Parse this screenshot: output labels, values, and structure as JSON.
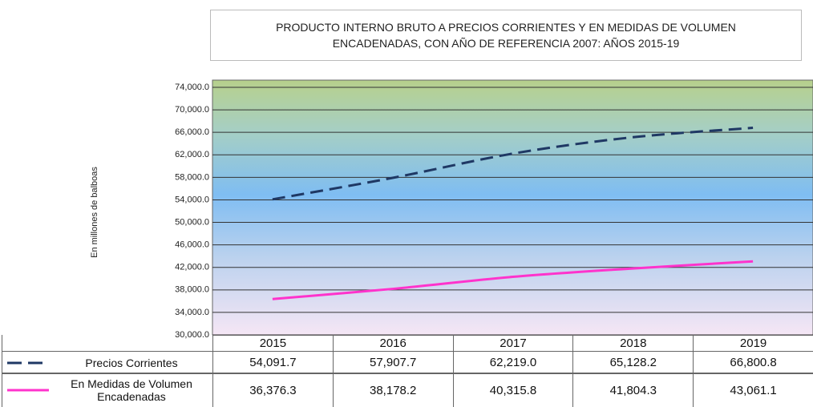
{
  "chart_data": {
    "type": "line",
    "title": "PRODUCTO INTERNO BRUTO A PRECIOS CORRIENTES Y EN MEDIDAS DE VOLUMEN ENCADENADAS, CON AÑO DE REFERENCIA 2007: AÑOS 2015-19",
    "y_label": "En millones de balboas",
    "categories": [
      "2015",
      "2016",
      "2017",
      "2018",
      "2019"
    ],
    "series": [
      {
        "name": "Precios Corrientes",
        "color": "#1f3864",
        "dash": true,
        "values": [
          54091.7,
          57907.7,
          62219.0,
          65128.2,
          66800.8
        ],
        "value_labels": [
          "54,091.7",
          "57,907.7",
          "62,219.0",
          "65,128.2",
          "66,800.8"
        ]
      },
      {
        "name": "En Medidas de Volumen Encadenadas",
        "color": "#ff33cc",
        "dash": false,
        "values": [
          36376.3,
          38178.2,
          40315.8,
          41804.3,
          43061.1
        ],
        "value_labels": [
          "36,376.3",
          "38,178.2",
          "40,315.8",
          "41,804.3",
          "43,061.1"
        ]
      }
    ],
    "ylim": [
      30000,
      74000
    ],
    "yticks": [
      {
        "value": 30000,
        "label": "30,000.0"
      },
      {
        "value": 34000,
        "label": "34,000.0"
      },
      {
        "value": 38000,
        "label": "38,000.0"
      },
      {
        "value": 42000,
        "label": "42,000.0"
      },
      {
        "value": 46000,
        "label": "46,000.0"
      },
      {
        "value": 50000,
        "label": "50,000.0"
      },
      {
        "value": 54000,
        "label": "54,000.0"
      },
      {
        "value": 58000,
        "label": "58,000.0"
      },
      {
        "value": 62000,
        "label": "62,000.0"
      },
      {
        "value": 66000,
        "label": "66,000.0"
      },
      {
        "value": 70000,
        "label": "70,000.0"
      },
      {
        "value": 74000,
        "label": "74,000.0"
      }
    ],
    "grid": true
  }
}
